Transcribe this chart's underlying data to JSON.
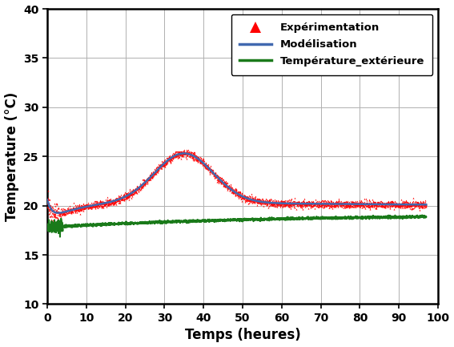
{
  "title": "",
  "xlabel": "Temps (heures)",
  "ylabel": "Temperature (°C)",
  "xlim": [
    0,
    100
  ],
  "ylim": [
    10,
    40
  ],
  "xticks": [
    0,
    10,
    20,
    30,
    40,
    50,
    60,
    70,
    80,
    90,
    100
  ],
  "yticks": [
    10,
    15,
    20,
    25,
    30,
    35,
    40
  ],
  "exp_color": "#ff0000",
  "model_color": "#4169b0",
  "ext_color": "#1a7a1a",
  "legend_labels": [
    "Expérimentation",
    "Modélisation",
    "Température_extérieure"
  ],
  "background_color": "#ffffff",
  "grid_color": "#b0b0b0"
}
